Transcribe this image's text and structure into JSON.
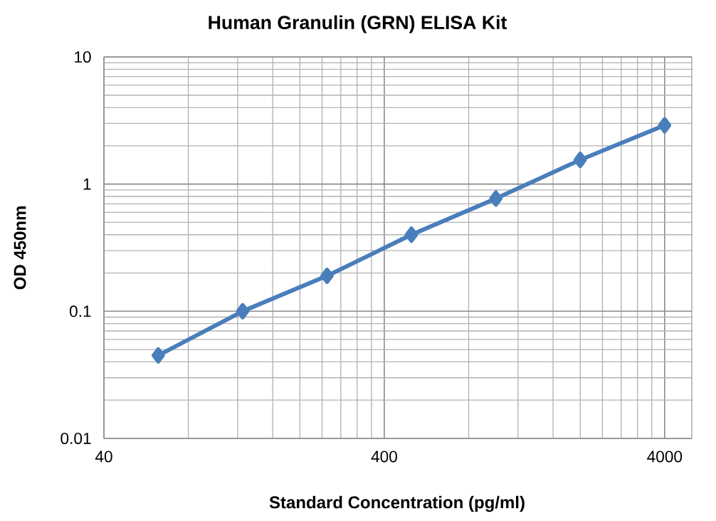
{
  "chart_data": {
    "type": "line",
    "title": "Human  Granulin (GRN) ELISA Kit",
    "xlabel": "Standard Concentration (pg/ml)",
    "ylabel": "OD 450nm",
    "x": [
      62.5,
      125,
      250,
      500,
      1000,
      2000,
      4000
    ],
    "series": [
      {
        "color": "#4a7ebb",
        "values": [
          0.045,
          0.1,
          0.19,
          0.4,
          0.77,
          1.55,
          2.9
        ]
      }
    ],
    "xlim": [
      40,
      5000
    ],
    "ylim": [
      0.01,
      10
    ],
    "xticks": [
      40,
      400,
      4000
    ],
    "yticks": [
      0.01,
      0.1,
      1,
      10
    ],
    "log": "xy",
    "grid": true,
    "marker": "diamond",
    "line_style": "solid"
  }
}
